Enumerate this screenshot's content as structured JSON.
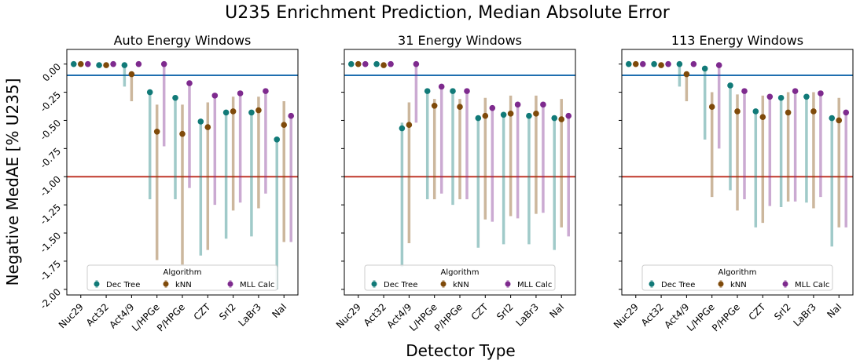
{
  "figure": {
    "suptitle": "U235 Enrichment Prediction, Median Absolute Error",
    "ylabel": "Negative MedAE [% U235]",
    "xlabel": "Detector Type"
  },
  "legend": {
    "title": "Algorithm",
    "placement": "lower center"
  },
  "colors": {
    "dec_tree": "#117a78",
    "knn": "#7f4a0a",
    "mll": "#7e2a8e",
    "ref_blue": "#1f6fb0",
    "ref_red": "#c0392b"
  },
  "chart_data": [
    {
      "type": "scatter",
      "title": "Auto Energy Windows",
      "categories": [
        "Nuc29",
        "Act32",
        "Act4/9",
        "L/HPGe",
        "P/HPGe",
        "CZT",
        "SrI2",
        "LaBr3",
        "NaI"
      ],
      "ylim": [
        -2.05,
        0.13
      ],
      "yticks": [
        "0.00",
        "-0.25",
        "-0.50",
        "-0.75",
        "-1.00",
        "-1.25",
        "-1.50",
        "-1.75",
        "-2.00"
      ],
      "reference_lines": [
        -0.1,
        -1.0
      ],
      "series": [
        {
          "name": "Dec Tree",
          "values": [
            0.0,
            -0.01,
            -0.01,
            -0.25,
            -0.3,
            -0.51,
            -0.43,
            -0.43,
            -0.67
          ],
          "err_low": [
            0.0,
            -0.01,
            -0.2,
            -1.2,
            -1.2,
            -1.7,
            -1.55,
            -1.53,
            -2.0
          ],
          "err_high": [
            0.0,
            -0.01,
            0.0,
            -0.25,
            -0.3,
            -0.51,
            -0.43,
            -0.43,
            -0.67
          ]
        },
        {
          "name": "kNN",
          "values": [
            0.0,
            -0.01,
            -0.09,
            -0.6,
            -0.62,
            -0.56,
            -0.42,
            -0.41,
            -0.54
          ],
          "err_low": [
            0.0,
            -0.01,
            -0.33,
            -1.74,
            -1.78,
            -1.65,
            -1.3,
            -1.28,
            -1.58
          ],
          "err_high": [
            0.0,
            -0.01,
            -0.09,
            -0.36,
            -0.36,
            -0.34,
            -0.29,
            -0.29,
            -0.33
          ]
        },
        {
          "name": "MLL Calc",
          "values": [
            0.0,
            0.0,
            0.0,
            0.0,
            -0.17,
            -0.28,
            -0.26,
            -0.24,
            -0.46
          ],
          "err_low": [
            0.0,
            0.0,
            0.0,
            -0.73,
            -1.1,
            -1.25,
            -1.23,
            -1.15,
            -1.58
          ],
          "err_high": [
            0.0,
            0.0,
            0.0,
            0.0,
            -0.17,
            -0.28,
            -0.26,
            -0.24,
            -0.46
          ]
        }
      ]
    },
    {
      "type": "scatter",
      "title": "31 Energy Windows",
      "categories": [
        "Nuc29",
        "Act32",
        "Act4/9",
        "L/HPGe",
        "P/HPGe",
        "CZT",
        "SrI2",
        "LaBr3",
        "NaI"
      ],
      "ylim": [
        -2.05,
        0.13
      ],
      "reference_lines": [
        -0.1,
        -1.0
      ],
      "series": [
        {
          "name": "Dec Tree",
          "values": [
            0.0,
            0.0,
            -0.57,
            -0.24,
            -0.24,
            -0.48,
            -0.45,
            -0.46,
            -0.48
          ],
          "err_low": [
            0.0,
            0.0,
            -1.8,
            -1.2,
            -1.25,
            -1.63,
            -1.6,
            -1.6,
            -1.65
          ],
          "err_high": [
            0.0,
            0.0,
            -0.52,
            -0.24,
            -0.24,
            -0.48,
            -0.45,
            -0.46,
            -0.48
          ]
        },
        {
          "name": "kNN",
          "values": [
            0.0,
            -0.01,
            -0.54,
            -0.37,
            -0.38,
            -0.46,
            -0.44,
            -0.44,
            -0.49
          ],
          "err_low": [
            0.0,
            -0.01,
            -1.59,
            -1.2,
            -1.2,
            -1.38,
            -1.35,
            -1.33,
            -1.45
          ],
          "err_high": [
            0.0,
            -0.01,
            -0.34,
            -0.31,
            -0.31,
            -0.3,
            -0.28,
            -0.28,
            -0.31
          ]
        },
        {
          "name": "MLL Calc",
          "values": [
            0.0,
            0.0,
            0.0,
            -0.2,
            -0.24,
            -0.39,
            -0.36,
            -0.36,
            -0.46
          ],
          "err_low": [
            0.0,
            0.0,
            -0.52,
            -1.15,
            -1.2,
            -1.4,
            -1.37,
            -1.32,
            -1.53
          ],
          "err_high": [
            0.0,
            0.0,
            0.0,
            -0.2,
            -0.24,
            -0.39,
            -0.36,
            -0.36,
            -0.46
          ]
        }
      ]
    },
    {
      "type": "scatter",
      "title": "113 Energy Windows",
      "categories": [
        "Nuc29",
        "Act32",
        "Act4/9",
        "L/HPGe",
        "P/HPGe",
        "CZT",
        "SrI2",
        "LaBr3",
        "NaI"
      ],
      "ylim": [
        -2.05,
        0.13
      ],
      "reference_lines": [
        -0.1,
        -1.0
      ],
      "series": [
        {
          "name": "Dec Tree",
          "values": [
            0.0,
            0.0,
            0.0,
            -0.04,
            -0.19,
            -0.42,
            -0.3,
            -0.29,
            -0.48
          ],
          "err_low": [
            0.0,
            0.0,
            -0.2,
            -0.67,
            -1.12,
            -1.45,
            -1.27,
            -1.23,
            -1.62
          ],
          "err_high": [
            0.0,
            0.0,
            0.0,
            -0.04,
            -0.19,
            -0.42,
            -0.3,
            -0.29,
            -0.48
          ]
        },
        {
          "name": "kNN",
          "values": [
            0.0,
            -0.01,
            -0.09,
            -0.38,
            -0.42,
            -0.47,
            -0.43,
            -0.42,
            -0.5
          ],
          "err_low": [
            0.0,
            -0.01,
            -0.33,
            -1.18,
            -1.3,
            -1.41,
            -1.22,
            -1.28,
            -1.45
          ],
          "err_high": [
            0.0,
            -0.01,
            -0.09,
            -0.25,
            -0.27,
            -0.28,
            -0.25,
            -0.25,
            -0.3
          ]
        },
        {
          "name": "MLL Calc",
          "values": [
            0.0,
            0.0,
            0.0,
            -0.01,
            -0.24,
            -0.29,
            -0.24,
            -0.26,
            -0.43
          ],
          "err_low": [
            0.0,
            0.0,
            0.0,
            -0.75,
            -1.2,
            -1.26,
            -1.22,
            -1.18,
            -1.45
          ],
          "err_high": [
            0.0,
            0.0,
            0.0,
            -0.01,
            -0.24,
            -0.29,
            -0.24,
            -0.26,
            -0.43
          ]
        }
      ]
    }
  ]
}
